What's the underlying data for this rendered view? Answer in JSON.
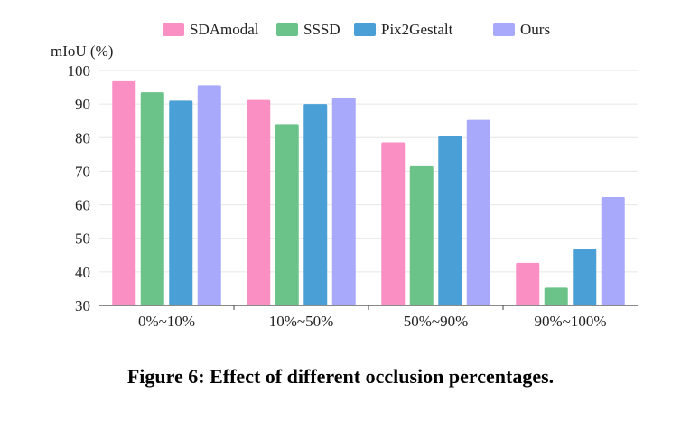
{
  "chart_data": {
    "type": "bar",
    "ylabel": "mIoU (%)",
    "ylim": [
      30,
      100
    ],
    "yticks": [
      30,
      40,
      50,
      60,
      70,
      80,
      90,
      100
    ],
    "grid": true,
    "legend_position": "top-center",
    "categories": [
      "0%~10%",
      "10%~50%",
      "50%~90%",
      "90%~100%"
    ],
    "series": [
      {
        "name": "SDAmodal",
        "color": "#f98fc3",
        "values": [
          96.8,
          91.2,
          78.6,
          42.7
        ]
      },
      {
        "name": "SSSD",
        "color": "#6cc38a",
        "values": [
          93.5,
          84.0,
          71.5,
          35.3
        ]
      },
      {
        "name": "Pix2Gestalt",
        "color": "#4a9fd6",
        "values": [
          91.0,
          90.0,
          80.4,
          46.8
        ]
      },
      {
        "name": "Ours",
        "color": "#a9a9fb",
        "values": [
          95.6,
          91.9,
          85.3,
          62.3
        ]
      }
    ]
  },
  "caption": "Figure 6: Effect of different occlusion percentages."
}
